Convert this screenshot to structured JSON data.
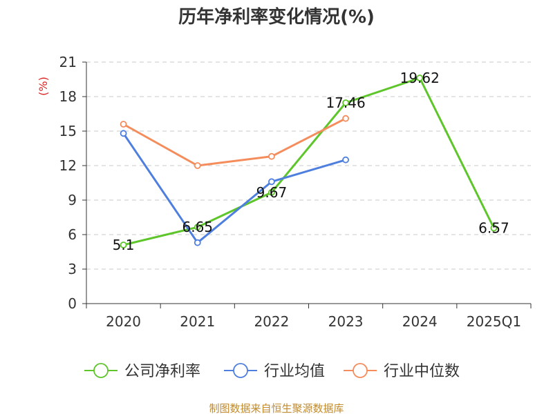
{
  "colors": {
    "company": "#5ec52b",
    "industry_avg": "#4f7fde",
    "industry_median": "#f58c5b",
    "unit": "#dd2222",
    "source": "#c08a2d",
    "grid": "#c8c8c8",
    "axis": "#333333"
  },
  "chart_data": {
    "type": "line",
    "title": "历年净利率变化情况(%)",
    "ylabel": "(%)",
    "xlabel": "",
    "categories": [
      "2020",
      "2021",
      "2022",
      "2023",
      "2024",
      "2025Q1"
    ],
    "ylim": [
      0,
      21
    ],
    "yticks": [
      "0",
      "3",
      "6",
      "9",
      "12",
      "15",
      "18",
      "21"
    ],
    "grid": true,
    "legend_position": "bottom",
    "series": [
      {
        "name": "公司净利率",
        "color_key": "company",
        "values": [
          5.1,
          6.65,
          9.67,
          17.46,
          19.62,
          6.57
        ],
        "labels": [
          "5.1",
          "6.65",
          "9.67",
          "17.46",
          "19.62",
          "6.57"
        ]
      },
      {
        "name": "行业均值",
        "color_key": "industry_avg",
        "values": [
          14.8,
          5.3,
          10.6,
          12.5,
          null,
          null
        ]
      },
      {
        "name": "行业中位数",
        "color_key": "industry_median",
        "values": [
          15.6,
          12.0,
          12.8,
          16.1,
          null,
          null
        ]
      }
    ]
  },
  "source_text": "制图数据来自恒生聚源数据库"
}
